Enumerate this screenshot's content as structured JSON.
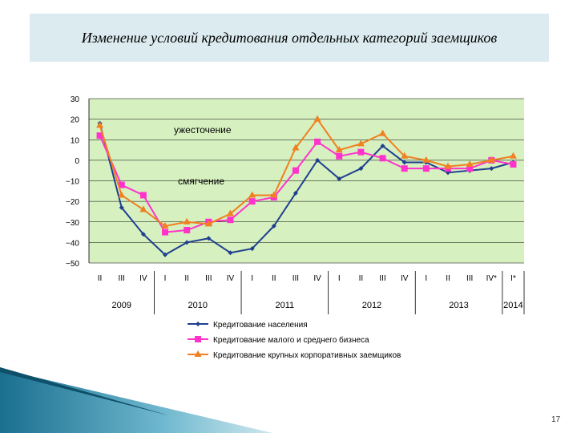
{
  "slide": {
    "title": "Изменение условий кредитования отдельных категорий заемщиков",
    "page_number": "17"
  },
  "chart_data": {
    "type": "line",
    "ylim": [
      -50,
      30
    ],
    "yticks": [
      30,
      20,
      10,
      0,
      -10,
      -20,
      -30,
      -40,
      -50
    ],
    "ytick_labels": [
      "30",
      "20",
      "10",
      "0",
      "−10",
      "−20",
      "−30",
      "−40",
      "−50"
    ],
    "grid": true,
    "categories": [
      "II",
      "III",
      "IV",
      "I",
      "II",
      "III",
      "IV",
      "I",
      "II",
      "III",
      "IV",
      "I",
      "II",
      "III",
      "IV",
      "I",
      "II",
      "III",
      "IV*",
      "I*"
    ],
    "years": [
      {
        "label": "2009",
        "start": 0,
        "end": 2
      },
      {
        "label": "2010",
        "start": 3,
        "end": 6
      },
      {
        "label": "2011",
        "start": 7,
        "end": 10
      },
      {
        "label": "2012",
        "start": 11,
        "end": 14
      },
      {
        "label": "2013",
        "start": 15,
        "end": 18
      },
      {
        "label": "2014",
        "start": 19,
        "end": 19
      }
    ],
    "annotations": {
      "upper": "ужесточение",
      "lower": "смягчение"
    },
    "legend_position": "bottom",
    "series": [
      {
        "name": "Кредитование населения",
        "color": "#1f3f8f",
        "marker": "diamond",
        "values": [
          18,
          -23,
          -36,
          -46,
          -40,
          -38,
          -45,
          -43,
          -32,
          -16,
          0,
          -9,
          -4,
          7,
          -1,
          -1,
          -6,
          -5,
          -4,
          -1
        ]
      },
      {
        "name": "Кредитование малого и среднего бизнеса",
        "color": "#ff33cc",
        "marker": "square",
        "values": [
          12,
          -12,
          -17,
          -35,
          -34,
          -30,
          -29,
          -20,
          -18,
          -5,
          9,
          2,
          4,
          1,
          -4,
          -4,
          -4,
          -4,
          0,
          -2
        ]
      },
      {
        "name": "Кредитование крупных корпоративных заемщиков",
        "color": "#f08020",
        "marker": "triangle",
        "values": [
          17,
          -17,
          -24,
          -32,
          -30,
          -31,
          -26,
          -17,
          -17,
          6,
          20,
          5,
          8,
          13,
          2,
          0,
          -3,
          -2,
          0,
          2
        ]
      }
    ]
  }
}
